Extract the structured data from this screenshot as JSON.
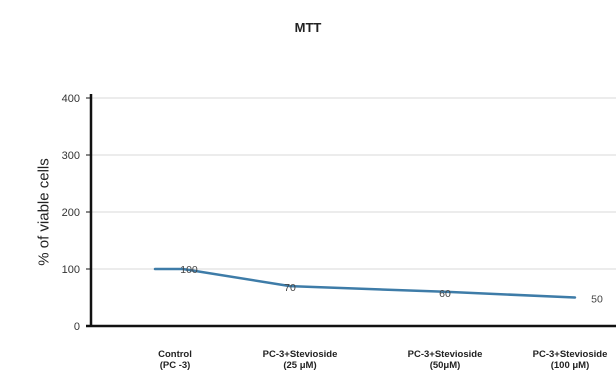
{
  "chart_data": {
    "type": "line",
    "title": "MTT",
    "xlabel": "",
    "ylabel": "% of viable cells",
    "ylim": [
      0,
      400
    ],
    "yticks": [
      0,
      100,
      200,
      300,
      400
    ],
    "grid": true,
    "legend": "none",
    "categories": [
      [
        "Control",
        "(PC -3)"
      ],
      [
        "PC-3+Stevioside",
        "(25 μM)"
      ],
      [
        "PC-3+Stevioside",
        "(50μM)"
      ],
      [
        "PC-3+Stevioside",
        "(100 μM)"
      ]
    ],
    "series": [
      {
        "values": [
          100,
          70,
          60,
          50
        ],
        "data_labels": [
          "100",
          "70",
          "60",
          "50"
        ],
        "color": "#3e7ca8"
      }
    ],
    "colors": {
      "line": "#3e7ca8",
      "grid": "#d9d9d9",
      "axis": "#111111"
    }
  }
}
